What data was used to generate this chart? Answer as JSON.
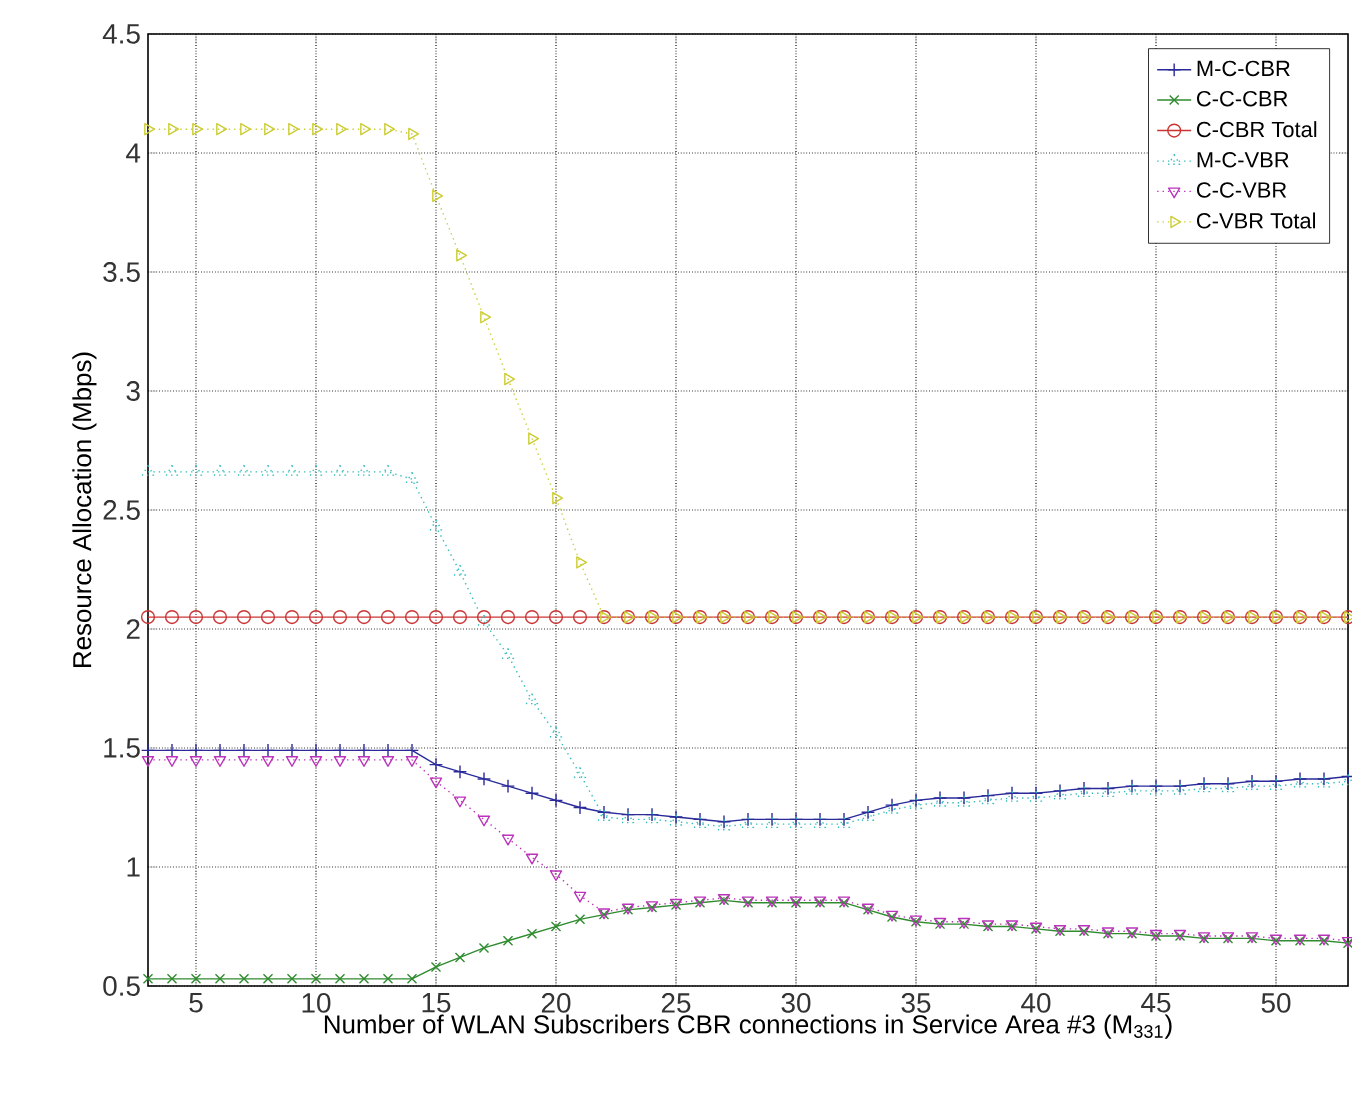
{
  "chart_data": {
    "type": "line",
    "xlabel": "Number of WLAN Subscribers CBR connections in Service Area #3 (M$_{331}$)",
    "ylabel": "Resource Allocation (Mbps)",
    "x": [
      3,
      4,
      5,
      6,
      7,
      8,
      9,
      10,
      11,
      12,
      13,
      14,
      15,
      16,
      17,
      18,
      19,
      20,
      21,
      22,
      23,
      24,
      25,
      26,
      27,
      28,
      29,
      30,
      31,
      32,
      33,
      34,
      35,
      36,
      37,
      38,
      39,
      40,
      41,
      42,
      43,
      44,
      45,
      46,
      47,
      48,
      49,
      50,
      51,
      52,
      53
    ],
    "xlim": [
      3,
      53
    ],
    "xticks": [
      5,
      10,
      15,
      20,
      25,
      30,
      35,
      40,
      45,
      50
    ],
    "ylim": [
      0.5,
      4.5
    ],
    "yticks": [
      0.5,
      1,
      1.5,
      2,
      2.5,
      3,
      3.5,
      4,
      4.5
    ],
    "grid": true,
    "legend": "top right",
    "series": [
      {
        "name": "M-C-CBR",
        "color": "#2a2a9a",
        "marker": "plus",
        "line_style": "solid",
        "values": [
          1.49,
          1.49,
          1.49,
          1.49,
          1.49,
          1.49,
          1.49,
          1.49,
          1.49,
          1.49,
          1.49,
          1.49,
          1.43,
          1.4,
          1.37,
          1.34,
          1.31,
          1.28,
          1.25,
          1.23,
          1.22,
          1.22,
          1.21,
          1.2,
          1.19,
          1.2,
          1.2,
          1.2,
          1.2,
          1.2,
          1.23,
          1.26,
          1.28,
          1.29,
          1.29,
          1.3,
          1.31,
          1.31,
          1.32,
          1.33,
          1.33,
          1.34,
          1.34,
          1.34,
          1.35,
          1.35,
          1.36,
          1.36,
          1.37,
          1.37,
          1.38
        ]
      },
      {
        "name": "C-C-CBR",
        "color": "#2e8b2e",
        "marker": "cross",
        "line_style": "solid",
        "values": [
          0.53,
          0.53,
          0.53,
          0.53,
          0.53,
          0.53,
          0.53,
          0.53,
          0.53,
          0.53,
          0.53,
          0.53,
          0.58,
          0.62,
          0.66,
          0.69,
          0.72,
          0.75,
          0.78,
          0.8,
          0.82,
          0.83,
          0.84,
          0.85,
          0.86,
          0.85,
          0.85,
          0.85,
          0.85,
          0.85,
          0.82,
          0.79,
          0.77,
          0.76,
          0.76,
          0.75,
          0.75,
          0.74,
          0.73,
          0.73,
          0.72,
          0.72,
          0.71,
          0.71,
          0.7,
          0.7,
          0.7,
          0.69,
          0.69,
          0.69,
          0.68
        ]
      },
      {
        "name": "C-CBR Total",
        "color": "#cc3333",
        "marker": "circle",
        "line_style": "solid",
        "values": [
          2.05,
          2.05,
          2.05,
          2.05,
          2.05,
          2.05,
          2.05,
          2.05,
          2.05,
          2.05,
          2.05,
          2.05,
          2.05,
          2.05,
          2.05,
          2.05,
          2.05,
          2.05,
          2.05,
          2.05,
          2.05,
          2.05,
          2.05,
          2.05,
          2.05,
          2.05,
          2.05,
          2.05,
          2.05,
          2.05,
          2.05,
          2.05,
          2.05,
          2.05,
          2.05,
          2.05,
          2.05,
          2.05,
          2.05,
          2.05,
          2.05,
          2.05,
          2.05,
          2.05,
          2.05,
          2.05,
          2.05,
          2.05,
          2.05,
          2.05,
          2.05
        ]
      },
      {
        "name": "M-C-VBR",
        "color": "#33bbbb",
        "marker": "triangle",
        "line_style": "dotted",
        "values": [
          2.66,
          2.66,
          2.66,
          2.66,
          2.66,
          2.66,
          2.66,
          2.66,
          2.66,
          2.66,
          2.66,
          2.63,
          2.43,
          2.24,
          2.03,
          1.89,
          1.7,
          1.56,
          1.39,
          1.21,
          1.2,
          1.2,
          1.19,
          1.18,
          1.17,
          1.18,
          1.18,
          1.18,
          1.18,
          1.18,
          1.21,
          1.24,
          1.26,
          1.27,
          1.27,
          1.28,
          1.29,
          1.29,
          1.3,
          1.31,
          1.31,
          1.32,
          1.32,
          1.32,
          1.33,
          1.33,
          1.34,
          1.34,
          1.35,
          1.35,
          1.36
        ]
      },
      {
        "name": "C-C-VBR",
        "color": "#bb33bb",
        "marker": "triangle-down",
        "line_style": "dotted",
        "values": [
          1.45,
          1.45,
          1.45,
          1.45,
          1.45,
          1.45,
          1.45,
          1.45,
          1.45,
          1.45,
          1.45,
          1.45,
          1.36,
          1.28,
          1.2,
          1.12,
          1.04,
          0.97,
          0.88,
          0.81,
          0.83,
          0.84,
          0.85,
          0.86,
          0.87,
          0.86,
          0.86,
          0.86,
          0.86,
          0.86,
          0.83,
          0.8,
          0.78,
          0.77,
          0.77,
          0.76,
          0.76,
          0.75,
          0.74,
          0.74,
          0.73,
          0.73,
          0.72,
          0.72,
          0.71,
          0.71,
          0.71,
          0.7,
          0.7,
          0.7,
          0.69
        ]
      },
      {
        "name": "C-VBR Total",
        "color": "#cccc33",
        "marker": "triangle-right",
        "line_style": "dotted",
        "values": [
          4.1,
          4.1,
          4.1,
          4.1,
          4.1,
          4.1,
          4.1,
          4.1,
          4.1,
          4.1,
          4.1,
          4.08,
          3.82,
          3.57,
          3.31,
          3.05,
          2.8,
          2.55,
          2.28,
          2.05,
          2.05,
          2.05,
          2.05,
          2.05,
          2.05,
          2.05,
          2.05,
          2.05,
          2.05,
          2.05,
          2.05,
          2.05,
          2.05,
          2.05,
          2.05,
          2.05,
          2.05,
          2.05,
          2.05,
          2.05,
          2.05,
          2.05,
          2.05,
          2.05,
          2.05,
          2.05,
          2.05,
          2.05,
          2.05,
          2.05,
          2.05
        ]
      }
    ]
  }
}
